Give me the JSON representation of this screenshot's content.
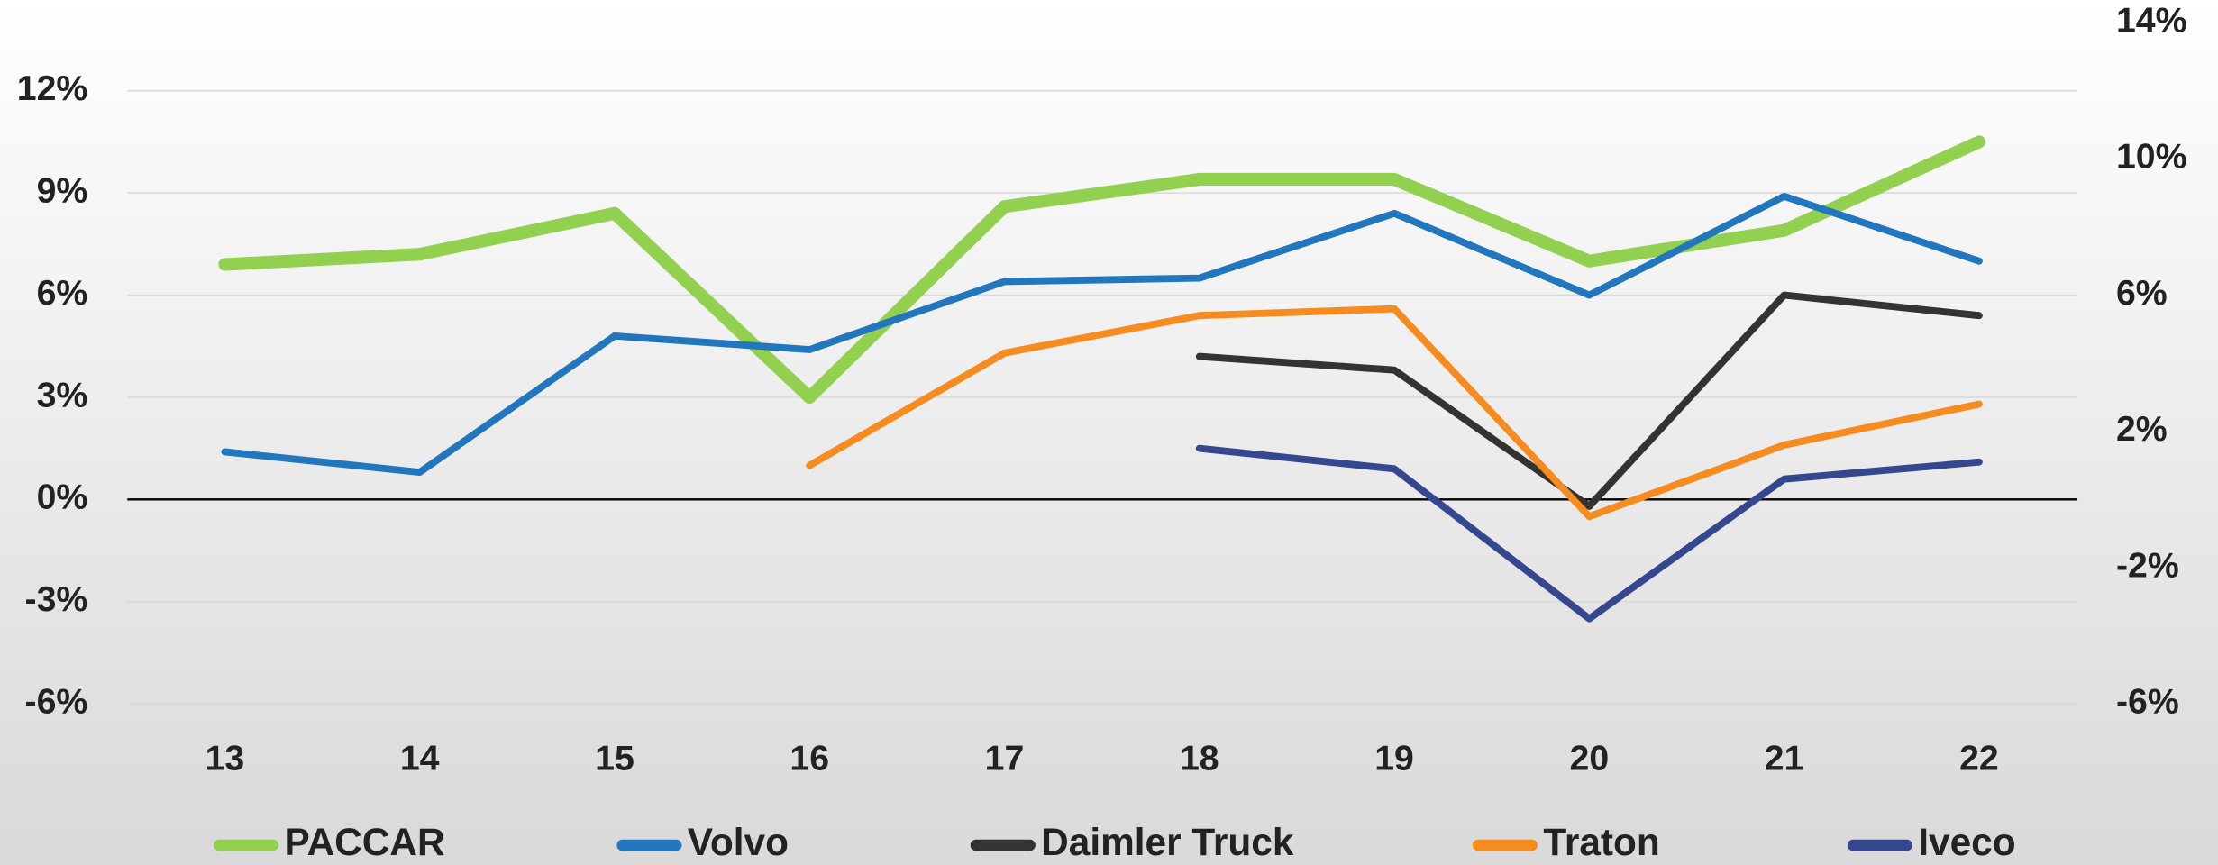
{
  "chart_data": {
    "type": "line",
    "categories": [
      "13",
      "14",
      "15",
      "16",
      "17",
      "18",
      "19",
      "20",
      "21",
      "22"
    ],
    "series": [
      {
        "name": "PACCAR",
        "color": "#92d050",
        "values": [
          6.9,
          7.2,
          8.4,
          3.0,
          8.6,
          9.4,
          9.4,
          7.0,
          7.9,
          10.5
        ]
      },
      {
        "name": "Volvo",
        "color": "#2176bd",
        "values": [
          1.4,
          0.8,
          4.8,
          4.4,
          6.4,
          6.5,
          8.4,
          6.0,
          8.9,
          7.0
        ]
      },
      {
        "name": "Daimler Truck",
        "color": "#333333",
        "values": [
          null,
          null,
          null,
          null,
          null,
          4.2,
          3.8,
          -0.2,
          6.0,
          5.4
        ]
      },
      {
        "name": "Traton",
        "color": "#f68b1f",
        "values": [
          null,
          null,
          null,
          1.0,
          4.3,
          5.4,
          5.6,
          -0.5,
          1.6,
          2.8
        ]
      },
      {
        "name": "Iveco",
        "color": "#34478f",
        "values": [
          null,
          null,
          null,
          null,
          null,
          1.5,
          0.9,
          -3.5,
          0.6,
          1.1
        ]
      }
    ],
    "ylim": [
      -6,
      14
    ],
    "yticks": [
      {
        "value": -6,
        "label": "-6%"
      },
      {
        "value": -3,
        "label": "-3%"
      },
      {
        "value": 0,
        "label": "0%"
      },
      {
        "value": 3,
        "label": "3%"
      },
      {
        "value": 6,
        "label": "6%"
      },
      {
        "value": 9,
        "label": "9%"
      },
      {
        "value": 12,
        "label": "12%"
      }
    ],
    "y2lim": [
      -6,
      14
    ],
    "y2ticks": [
      {
        "value": -6,
        "label": "-6%"
      },
      {
        "value": -2,
        "label": "-2%"
      },
      {
        "value": 2,
        "label": "2%"
      },
      {
        "value": 6,
        "label": "6%"
      },
      {
        "value": 10,
        "label": "10%"
      },
      {
        "value": 14,
        "label": "14%"
      }
    ],
    "grid": true,
    "legend": "bottom"
  }
}
